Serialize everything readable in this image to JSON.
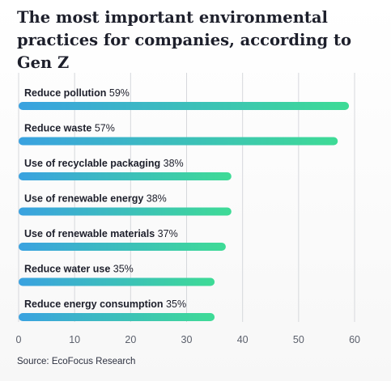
{
  "title": "The most important environmental practices for companies, according to Gen Z",
  "source": "Source: EcoFocus Research",
  "colors": {
    "bar_start": "#3aa2e0",
    "bar_end": "#3edb96",
    "grid": "#d6d8dc",
    "text": "#1d1f2b",
    "tick": "#5b606c"
  },
  "chart_data": {
    "type": "bar",
    "orientation": "horizontal",
    "categories": [
      "Reduce pollution",
      "Reduce waste",
      "Use of recyclable packaging",
      "Use of renewable energy",
      "Use of renewable materials",
      "Reduce water use",
      "Reduce energy consumption"
    ],
    "values": [
      59,
      57,
      38,
      38,
      37,
      35,
      35
    ],
    "value_labels": [
      "59%",
      "57%",
      "38%",
      "38%",
      "37%",
      "35%",
      "35%"
    ],
    "xlim": [
      0,
      60
    ],
    "xticks": [
      0,
      10,
      20,
      30,
      40,
      50,
      60
    ],
    "xtick_labels": [
      "0",
      "10",
      "20",
      "30",
      "40",
      "50",
      "60"
    ],
    "grid": true,
    "xlabel": "",
    "ylabel": ""
  }
}
